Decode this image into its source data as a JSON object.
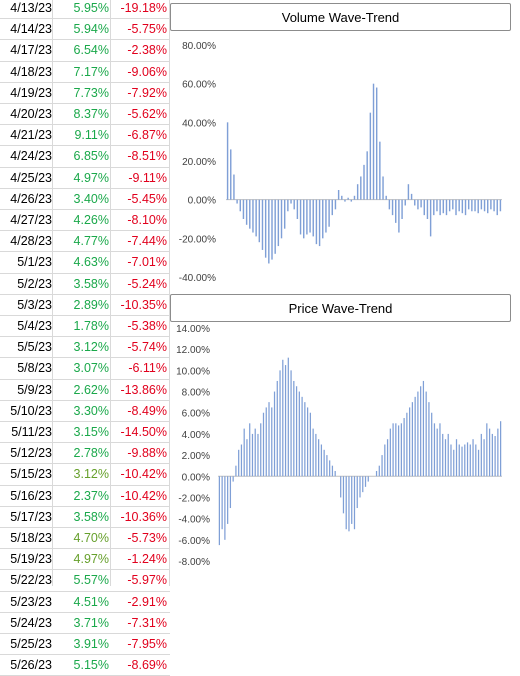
{
  "colors": {
    "positive": "#1aa84a",
    "positive_light": "#66a02b",
    "negative": "#e1001d",
    "bar": "#7f9fd6"
  },
  "rows": [
    {
      "date": "4/13/23",
      "pct": "5.95%",
      "neg": "-19.18%"
    },
    {
      "date": "4/14/23",
      "pct": "5.94%",
      "neg": "-5.75%"
    },
    {
      "date": "4/17/23",
      "pct": "6.54%",
      "neg": "-2.38%"
    },
    {
      "date": "4/18/23",
      "pct": "7.17%",
      "neg": "-9.06%"
    },
    {
      "date": "4/19/23",
      "pct": "7.73%",
      "neg": "-7.92%"
    },
    {
      "date": "4/20/23",
      "pct": "8.37%",
      "neg": "-5.62%"
    },
    {
      "date": "4/21/23",
      "pct": "9.11%",
      "neg": "-6.87%"
    },
    {
      "date": "4/24/23",
      "pct": "6.85%",
      "neg": "-8.51%"
    },
    {
      "date": "4/25/23",
      "pct": "4.97%",
      "neg": "-9.11%"
    },
    {
      "date": "4/26/23",
      "pct": "3.40%",
      "neg": "-5.45%"
    },
    {
      "date": "4/27/23",
      "pct": "4.26%",
      "neg": "-8.10%"
    },
    {
      "date": "4/28/23",
      "pct": "4.77%",
      "neg": "-7.44%"
    },
    {
      "date": "5/1/23",
      "pct": "4.63%",
      "neg": "-7.01%"
    },
    {
      "date": "5/2/23",
      "pct": "3.58%",
      "neg": "-5.24%"
    },
    {
      "date": "5/3/23",
      "pct": "2.89%",
      "neg": "-10.35%"
    },
    {
      "date": "5/4/23",
      "pct": "1.78%",
      "neg": "-5.38%"
    },
    {
      "date": "5/5/23",
      "pct": "3.12%",
      "neg": "-5.74%"
    },
    {
      "date": "5/8/23",
      "pct": "3.07%",
      "neg": "-6.11%"
    },
    {
      "date": "5/9/23",
      "pct": "2.62%",
      "neg": "-13.86%"
    },
    {
      "date": "5/10/23",
      "pct": "3.30%",
      "neg": "-8.49%"
    },
    {
      "date": "5/11/23",
      "pct": "3.15%",
      "neg": "-14.50%"
    },
    {
      "date": "5/12/23",
      "pct": "2.78%",
      "neg": "-9.88%"
    },
    {
      "date": "5/15/23",
      "pct": "3.12%",
      "neg": "-10.42%"
    },
    {
      "date": "5/16/23",
      "pct": "2.37%",
      "neg": "-10.42%"
    },
    {
      "date": "5/17/23",
      "pct": "3.58%",
      "neg": "-10.36%"
    },
    {
      "date": "5/18/23",
      "pct": "4.70%",
      "neg": "-5.73%"
    },
    {
      "date": "5/19/23",
      "pct": "4.97%",
      "neg": "-1.24%"
    },
    {
      "date": "5/22/23",
      "pct": "5.57%",
      "neg": "-5.97%"
    },
    {
      "date": "5/23/23",
      "pct": "4.51%",
      "neg": "-2.91%"
    },
    {
      "date": "5/24/23",
      "pct": "3.71%",
      "neg": "-7.31%"
    },
    {
      "date": "5/25/23",
      "pct": "3.91%",
      "neg": "-7.95%"
    },
    {
      "date": "5/26/23",
      "pct": "5.15%",
      "neg": "-8.69%"
    }
  ],
  "chart_data": [
    {
      "type": "bar",
      "title": "Volume Wave-Trend",
      "xlabel": "",
      "ylabel": "",
      "ylim": [
        -0.4,
        0.8
      ],
      "yticks": [
        "80.00%",
        "60.00%",
        "40.00%",
        "20.00%",
        "0.00%",
        "-20.00%",
        "-40.00%"
      ],
      "yticks_values": [
        0.8,
        0.6,
        0.4,
        0.2,
        0.0,
        -0.2,
        -0.4
      ],
      "values": [
        0.4,
        0.26,
        0.13,
        -0.02,
        -0.06,
        -0.1,
        -0.13,
        -0.15,
        -0.17,
        -0.19,
        -0.22,
        -0.26,
        -0.3,
        -0.33,
        -0.31,
        -0.28,
        -0.24,
        -0.2,
        -0.15,
        -0.06,
        -0.02,
        -0.05,
        -0.1,
        -0.18,
        -0.2,
        -0.18,
        -0.17,
        -0.19,
        -0.23,
        -0.24,
        -0.2,
        -0.17,
        -0.14,
        -0.08,
        -0.05,
        0.05,
        0.02,
        -0.01,
        0.01,
        -0.01,
        0.02,
        0.08,
        0.12,
        0.18,
        0.25,
        0.45,
        0.6,
        0.58,
        0.3,
        0.12,
        0.02,
        -0.05,
        -0.08,
        -0.12,
        -0.17,
        -0.1,
        -0.03,
        0.08,
        0.03,
        -0.03,
        -0.05,
        -0.04,
        -0.08,
        -0.1,
        -0.19,
        -0.08,
        -0.06,
        -0.08,
        -0.07,
        -0.08,
        -0.06,
        -0.05,
        -0.08,
        -0.06,
        -0.07,
        -0.08,
        -0.05,
        -0.06,
        -0.06,
        -0.07,
        -0.05,
        -0.06,
        -0.07,
        -0.05,
        -0.06,
        -0.08,
        -0.06
      ]
    },
    {
      "type": "bar",
      "title": "Price Wave-Trend",
      "xlabel": "",
      "ylabel": "",
      "ylim": [
        -0.08,
        0.14
      ],
      "yticks": [
        "14.00%",
        "12.00%",
        "10.00%",
        "8.00%",
        "6.00%",
        "4.00%",
        "2.00%",
        "0.00%",
        "-2.00%",
        "-4.00%",
        "-6.00%",
        "-8.00%"
      ],
      "yticks_values": [
        0.14,
        0.12,
        0.1,
        0.08,
        0.06,
        0.04,
        0.02,
        0.0,
        -0.02,
        -0.04,
        -0.06,
        -0.08
      ],
      "values": [
        -0.065,
        -0.05,
        -0.06,
        -0.045,
        -0.03,
        -0.005,
        0.01,
        0.025,
        0.03,
        0.045,
        0.035,
        0.05,
        0.04,
        0.045,
        0.04,
        0.05,
        0.06,
        0.065,
        0.07,
        0.065,
        0.08,
        0.09,
        0.1,
        0.11,
        0.105,
        0.112,
        0.1,
        0.09,
        0.085,
        0.08,
        0.075,
        0.07,
        0.065,
        0.06,
        0.045,
        0.04,
        0.035,
        0.03,
        0.025,
        0.02,
        0.015,
        0.01,
        0.005,
        0.0,
        -0.02,
        -0.035,
        -0.05,
        -0.052,
        -0.045,
        -0.05,
        -0.03,
        -0.02,
        -0.015,
        -0.01,
        -0.005,
        0.0,
        0.0,
        0.005,
        0.01,
        0.02,
        0.03,
        0.035,
        0.045,
        0.05,
        0.05,
        0.048,
        0.05,
        0.055,
        0.06,
        0.065,
        0.07,
        0.075,
        0.08,
        0.085,
        0.09,
        0.08,
        0.07,
        0.06,
        0.05,
        0.045,
        0.05,
        0.04,
        0.035,
        0.04,
        0.03,
        0.025,
        0.035,
        0.03,
        0.028,
        0.03,
        0.032,
        0.03,
        0.035,
        0.03,
        0.025,
        0.04,
        0.035,
        0.05,
        0.045,
        0.04,
        0.038,
        0.045,
        0.052
      ]
    }
  ]
}
